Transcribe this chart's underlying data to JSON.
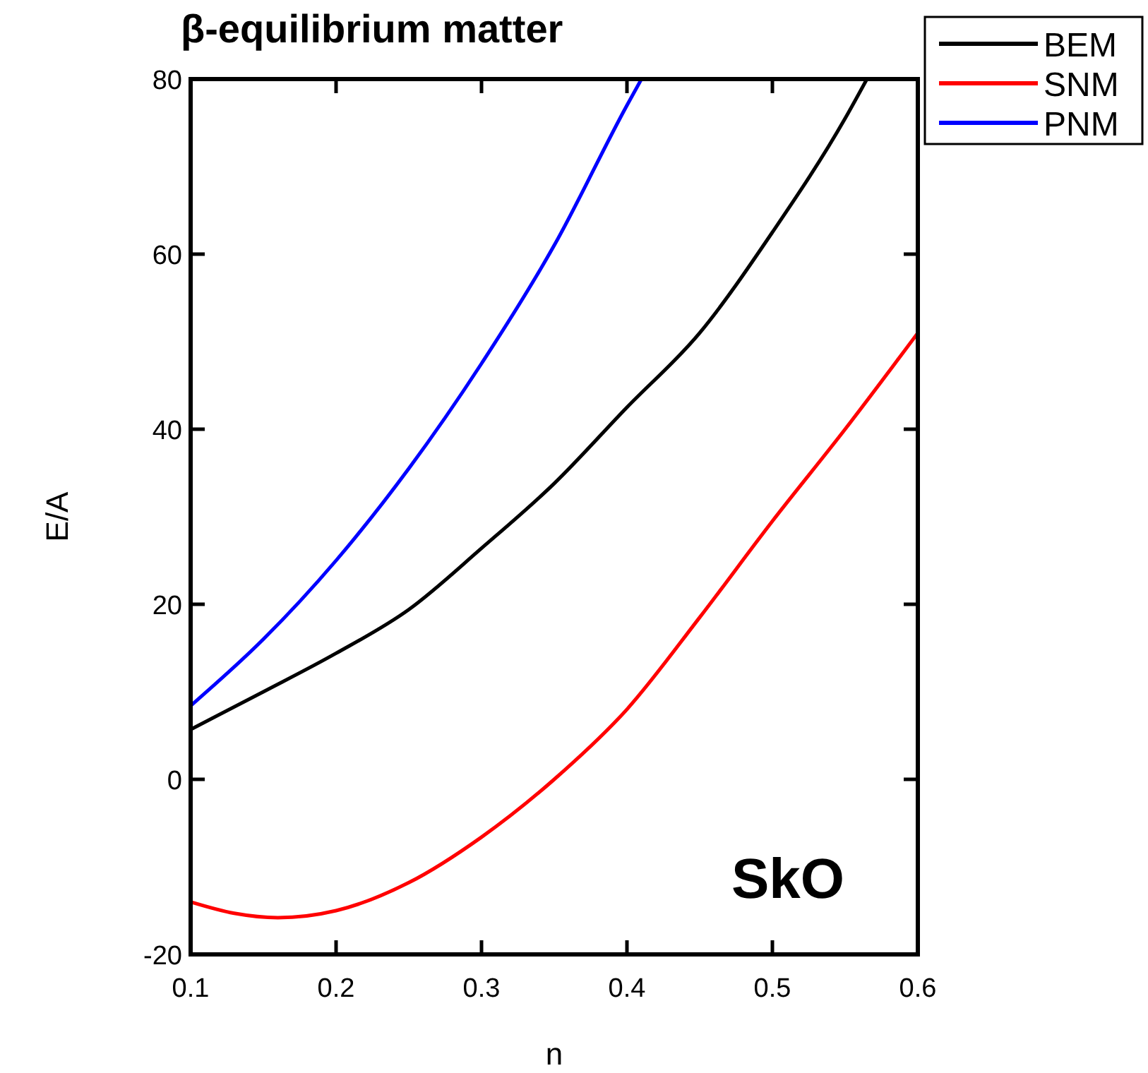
{
  "chart_data": {
    "type": "line",
    "title": "β-equilibrium matter",
    "xlabel": "n",
    "ylabel": "E/A",
    "annotations": [
      "SkO"
    ],
    "xlim": [
      0.1,
      0.6
    ],
    "ylim": [
      -20,
      80
    ],
    "xticks": [
      0.1,
      0.2,
      0.3,
      0.4,
      0.5,
      0.6
    ],
    "yticks": [
      -20,
      0,
      20,
      40,
      60,
      80
    ],
    "grid": false,
    "legend": "top right",
    "line_style": "solid",
    "marker": "none",
    "series": [
      {
        "name": "BEM",
        "color": "#000000",
        "x": [
          0.1,
          0.15,
          0.2,
          0.25,
          0.3,
          0.35,
          0.4,
          0.45,
          0.5,
          0.55,
          0.565
        ],
        "values": [
          5.7,
          10,
          14.4,
          19.4,
          26.4,
          33.8,
          42.5,
          51,
          62.5,
          75.5,
          80
        ]
      },
      {
        "name": "SNM",
        "color": "#ff0000",
        "x": [
          0.1,
          0.13,
          0.16,
          0.2,
          0.25,
          0.3,
          0.35,
          0.4,
          0.45,
          0.5,
          0.55,
          0.6
        ],
        "values": [
          -14,
          -15.3,
          -15.8,
          -15,
          -11.8,
          -6.6,
          0,
          8,
          18.5,
          29.5,
          40,
          51
        ]
      },
      {
        "name": "PNM",
        "color": "#0000ff",
        "x": [
          0.1,
          0.15,
          0.2,
          0.25,
          0.3,
          0.35,
          0.4,
          0.41
        ],
        "values": [
          8.4,
          16,
          25,
          35.5,
          47.5,
          61,
          77,
          80
        ]
      }
    ]
  }
}
